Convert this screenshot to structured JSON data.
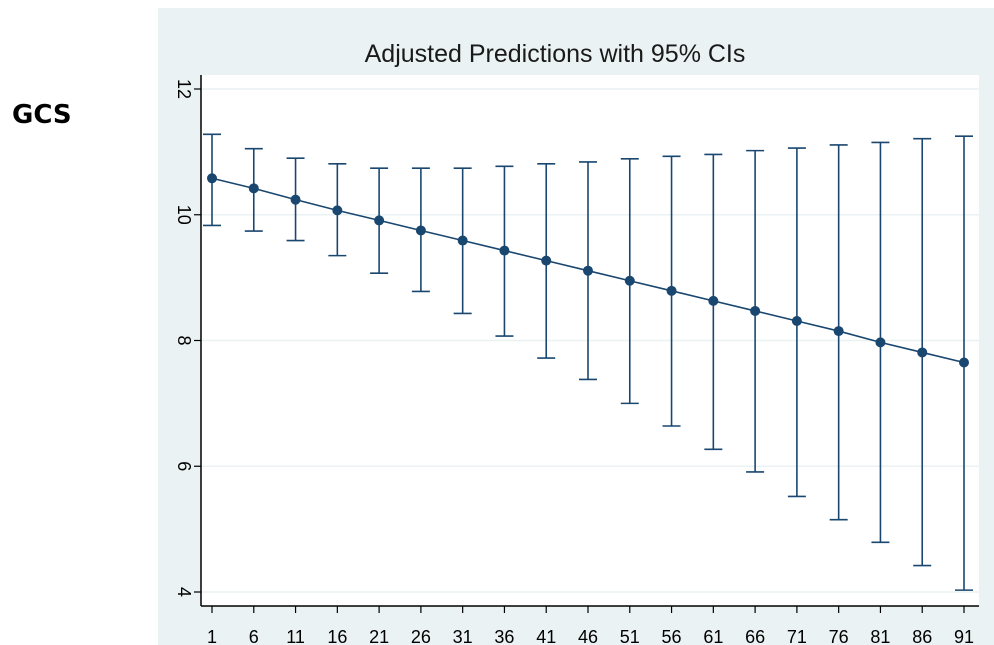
{
  "side_label": "GCS",
  "chart_data": {
    "type": "line",
    "title": "Adjusted Predictions with 95% CIs",
    "xlabel": "",
    "ylabel": "",
    "x": [
      1,
      6,
      11,
      16,
      21,
      26,
      31,
      36,
      41,
      46,
      51,
      56,
      61,
      66,
      71,
      76,
      81,
      86,
      91
    ],
    "series": [
      {
        "values": [
          10.58,
          10.42,
          10.24,
          10.07,
          9.91,
          9.75,
          9.59,
          9.43,
          9.27,
          9.11,
          8.95,
          8.79,
          8.63,
          8.47,
          8.31,
          8.15,
          7.97,
          7.81,
          7.65
        ],
        "ci_lower": [
          9.83,
          9.74,
          9.59,
          9.35,
          9.07,
          8.78,
          8.43,
          8.07,
          7.72,
          7.38,
          7.0,
          6.64,
          6.27,
          5.91,
          5.52,
          5.15,
          4.79,
          4.42,
          4.03
        ],
        "ci_upper": [
          11.28,
          11.05,
          10.9,
          10.81,
          10.74,
          10.74,
          10.74,
          10.77,
          10.81,
          10.84,
          10.89,
          10.93,
          10.96,
          11.02,
          11.06,
          11.11,
          11.15,
          11.21,
          11.25
        ]
      }
    ],
    "yticks": [
      4,
      6,
      8,
      10,
      12
    ],
    "ylim": [
      3.8,
      12.2
    ],
    "grid": true,
    "colors": {
      "outer_background": "#eaf2f3",
      "plot_background": "#ffffff",
      "series": "#1a476f",
      "grid": "#eaf2f3",
      "text": "#000000"
    }
  }
}
